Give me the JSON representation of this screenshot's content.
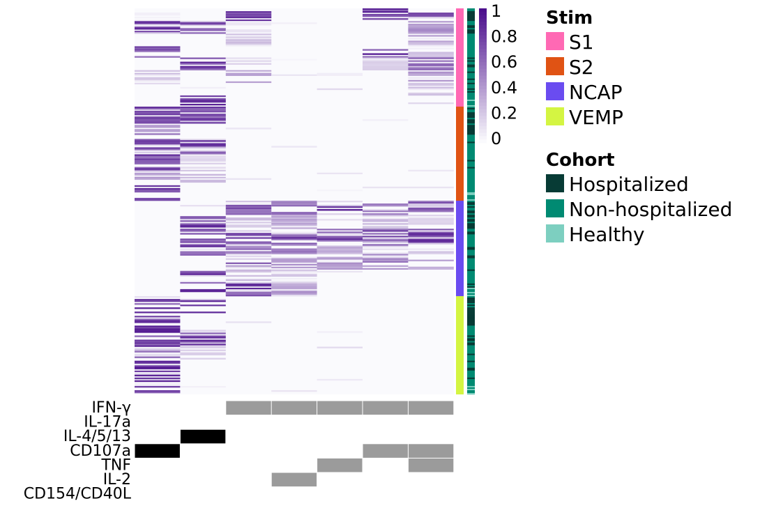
{
  "chart_data": {
    "type": "heatmap",
    "columns": 7,
    "color_scale": {
      "low": "#fafafd",
      "high": "#4b0e8c",
      "range": [
        0,
        1
      ],
      "ticks": [
        "1",
        "0.8",
        "0.6",
        "0.4",
        "0.2",
        "0"
      ]
    },
    "stim_groups": [
      {
        "name": "S1",
        "color": "#ff69b4",
        "profile": [
          [
            0.05,
            0.0,
            0.95,
            0.0,
            0.0,
            0.95,
            0.85
          ],
          [
            0.95,
            0.95,
            0.1,
            0.0,
            0.0,
            0.0,
            0.5
          ],
          [
            0.0,
            0.0,
            0.3,
            0.0,
            0.0,
            0.0,
            0.4
          ],
          [
            0.95,
            0.0,
            0.0,
            0.0,
            0.0,
            0.95,
            0.3
          ],
          [
            0.0,
            0.95,
            0.2,
            0.0,
            0.0,
            0.2,
            0.9
          ],
          [
            0.3,
            0.0,
            0.4,
            0.0,
            0.0,
            0.0,
            0.5
          ],
          [
            0.0,
            0.0,
            0.0,
            0.0,
            0.0,
            0.0,
            0.3
          ],
          [
            0.0,
            0.95,
            0.0,
            0.0,
            0.0,
            0.0,
            0.0
          ]
        ]
      },
      {
        "name": "S2",
        "color": "#e05314",
        "profile": [
          [
            0.95,
            0.9,
            0.0,
            0.0,
            0.0,
            0.0,
            0.0
          ],
          [
            0.6,
            0.0,
            0.0,
            0.0,
            0.0,
            0.0,
            0.0
          ],
          [
            0.9,
            0.95,
            0.0,
            0.0,
            0.0,
            0.0,
            0.0
          ],
          [
            0.95,
            0.2,
            0.0,
            0.0,
            0.0,
            0.0,
            0.0
          ],
          [
            0.5,
            0.3,
            0.0,
            0.0,
            0.0,
            0.0,
            0.0
          ],
          [
            0.9,
            0.0,
            0.0,
            0.0,
            0.0,
            0.0,
            0.0
          ]
        ]
      },
      {
        "name": "NCAP",
        "color": "#6a4cf0",
        "profile": [
          [
            0.0,
            0.0,
            0.8,
            0.7,
            0.95,
            0.6,
            0.8
          ],
          [
            0.0,
            0.95,
            0.3,
            0.4,
            0.0,
            0.3,
            0.2
          ],
          [
            0.0,
            0.95,
            0.9,
            0.95,
            0.9,
            0.85,
            0.95
          ],
          [
            0.0,
            0.9,
            0.6,
            0.7,
            0.4,
            0.7,
            0.3
          ],
          [
            0.0,
            0.0,
            0.7,
            0.5,
            0.5,
            0.6,
            0.4
          ],
          [
            0.0,
            0.95,
            0.3,
            0.3,
            0.0,
            0.0,
            0.0
          ],
          [
            0.0,
            0.9,
            0.95,
            0.5,
            0.0,
            0.0,
            0.0
          ]
        ]
      },
      {
        "name": "VEMP",
        "color": "#d4f542",
        "profile": [
          [
            0.95,
            0.9,
            0.0,
            0.0,
            0.0,
            0.0,
            0.0
          ],
          [
            0.95,
            0.0,
            0.0,
            0.0,
            0.0,
            0.0,
            0.0
          ],
          [
            0.95,
            0.95,
            0.0,
            0.0,
            0.0,
            0.0,
            0.0
          ],
          [
            0.95,
            0.2,
            0.0,
            0.0,
            0.0,
            0.0,
            0.0
          ],
          [
            0.95,
            0.0,
            0.0,
            0.0,
            0.0,
            0.0,
            0.0
          ],
          [
            0.95,
            0.0,
            0.0,
            0.0,
            0.0,
            0.0,
            0.0
          ]
        ]
      }
    ],
    "cohort_colors": {
      "Hospitalized": "#073b35",
      "Non-hospitalized": "#008a72",
      "Healthy": "#7dcfc0"
    },
    "cytokine_rows": [
      {
        "label": "IFN-γ",
        "cells": [
          0,
          0,
          1,
          1,
          1,
          1,
          1
        ]
      },
      {
        "label": "IL-17a",
        "cells": [
          0,
          0,
          0,
          0,
          0,
          0,
          0
        ]
      },
      {
        "label": "IL-4/5/13",
        "cells": [
          0,
          2,
          0,
          0,
          0,
          0,
          0
        ]
      },
      {
        "label": "CD107a",
        "cells": [
          2,
          0,
          0,
          0,
          0,
          1,
          1
        ]
      },
      {
        "label": "TNF",
        "cells": [
          0,
          0,
          0,
          0,
          1,
          0,
          1
        ]
      },
      {
        "label": "IL-2",
        "cells": [
          0,
          0,
          0,
          1,
          0,
          0,
          0
        ]
      },
      {
        "label": "CD154/CD40L",
        "cells": [
          0,
          0,
          0,
          0,
          0,
          0,
          0
        ]
      }
    ],
    "cell_colors": {
      "gray": "#9b9b9b",
      "black": "#000000"
    },
    "legends": [
      {
        "title": "Stim",
        "entries": [
          {
            "label": "S1",
            "color": "#ff69b4"
          },
          {
            "label": "S2",
            "color": "#e05314"
          },
          {
            "label": "NCAP",
            "color": "#6a4cf0"
          },
          {
            "label": "VEMP",
            "color": "#d4f542"
          }
        ]
      },
      {
        "title": "Cohort",
        "entries": [
          {
            "label": "Hospitalized",
            "color": "#073b35"
          },
          {
            "label": "Non-hospitalized",
            "color": "#008a72"
          },
          {
            "label": "Healthy",
            "color": "#7dcfc0"
          }
        ]
      }
    ]
  }
}
